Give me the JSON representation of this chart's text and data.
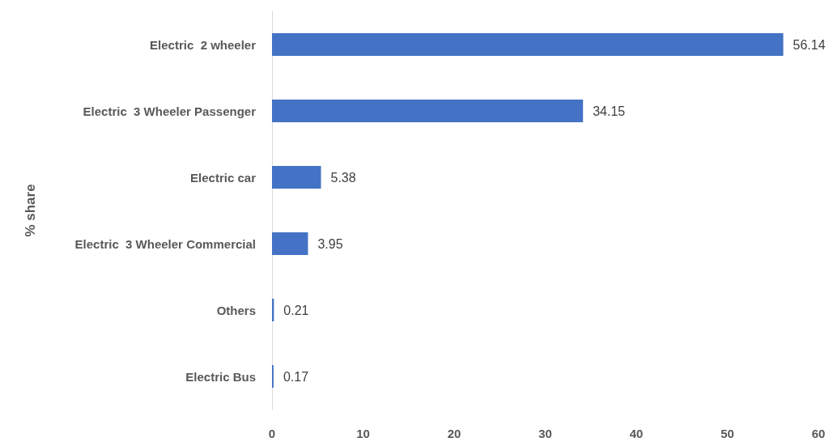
{
  "chart_data": {
    "type": "bar",
    "orientation": "horizontal",
    "ylabel": "% share",
    "categories": [
      "Electric  2 wheeler",
      "Electric  3 Wheeler Passenger",
      "Electric car",
      "Electric  3 Wheeler Commercial",
      "Others",
      "Electric Bus"
    ],
    "values": [
      56.14,
      34.15,
      5.38,
      3.95,
      0.21,
      0.17
    ],
    "color": "#4472c4",
    "xlim": [
      0,
      60
    ],
    "xticks": [
      0,
      10,
      20,
      30,
      40,
      50,
      60
    ],
    "data_labels": true
  }
}
